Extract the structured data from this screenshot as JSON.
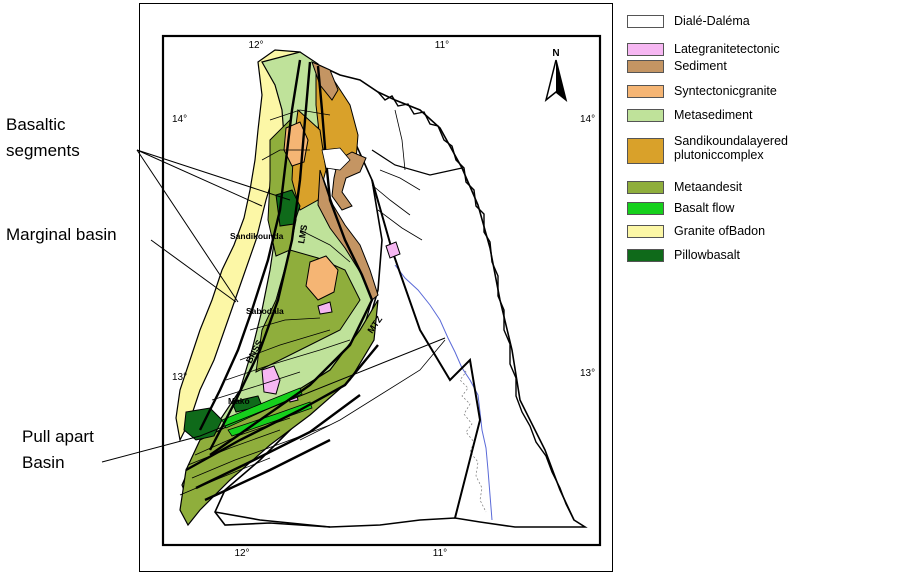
{
  "annotations": {
    "basaltic_segments": [
      "Basaltic",
      "segments"
    ],
    "marginal_basin": "Marginal basin",
    "pull_apart_basin": [
      "Pull apart",
      "Basin"
    ]
  },
  "map": {
    "lon_ticks": {
      "top_left": "12°",
      "top_right": "11°",
      "bottom_left": "12°",
      "bottom_right": "11°"
    },
    "lat_ticks": {
      "upper_left": "14°",
      "upper_right": "14°",
      "lower_left": "13°",
      "lower_right": "13°"
    },
    "north_label": "N",
    "places": [
      "Sandikounda",
      "Sabodala",
      "Mako"
    ],
    "structures": [
      "LMS",
      "BNSS",
      "MTZ"
    ]
  },
  "legend": [
    {
      "label_lines": [
        "Dialé-Daléma"
      ],
      "color": "#ffffff"
    },
    {
      "label_lines": [
        "Lategranitetectonic"
      ],
      "color": "#f6b7f2"
    },
    {
      "label_lines": [
        "Sediment"
      ],
      "color": "#c49563"
    },
    {
      "label_lines": [
        "Syntectonicgranite"
      ],
      "color": "#f5b574"
    },
    {
      "label_lines": [
        "Metasediment"
      ],
      "color": "#bfe29a"
    },
    {
      "label_lines": [
        "Sandikoundalayered",
        "plutoniccomplex"
      ],
      "color": "#d9a12a"
    },
    {
      "label_lines": [
        "Metaandesit"
      ],
      "color": "#8fae3c"
    },
    {
      "label_lines": [
        "Basalt flow"
      ],
      "color": "#16d01c"
    },
    {
      "label_lines": [
        "Granite ofBadon"
      ],
      "color": "#fcf7a6"
    },
    {
      "label_lines": [
        "Pillowbasalt"
      ],
      "color": "#0f6a1a"
    }
  ]
}
